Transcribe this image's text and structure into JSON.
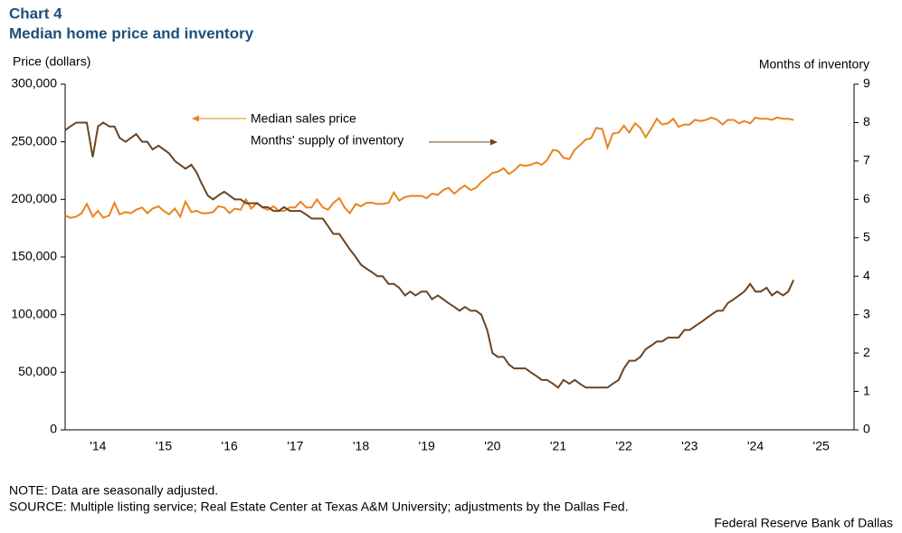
{
  "chart_data": {
    "type": "line",
    "title": "Chart 4",
    "subtitle": "Median home price and inventory",
    "y_label": "Price (dollars)",
    "y2_label": "Months  of inventory",
    "note": "NOTE: Data are seasonally adjusted.",
    "source": "SOURCE: Multiple listing service; Real Estate Center at Texas A&M University; adjustments by the Dallas Fed.",
    "credit": "Federal Reserve Bank of Dallas",
    "xlim": [
      2014,
      2026
    ],
    "xticks": [
      {
        "value": 2014.5,
        "label": "'14"
      },
      {
        "value": 2015.5,
        "label": "'15"
      },
      {
        "value": 2016.5,
        "label": "'16"
      },
      {
        "value": 2017.5,
        "label": "'17"
      },
      {
        "value": 2018.5,
        "label": "'18"
      },
      {
        "value": 2019.5,
        "label": "'19"
      },
      {
        "value": 2020.5,
        "label": "'20"
      },
      {
        "value": 2021.5,
        "label": "'21"
      },
      {
        "value": 2022.5,
        "label": "'22"
      },
      {
        "value": 2023.5,
        "label": "'23"
      },
      {
        "value": 2024.5,
        "label": "'24"
      },
      {
        "value": 2025.5,
        "label": "'25"
      }
    ],
    "ylim": [
      0,
      300000
    ],
    "yticks": [
      0,
      {
        "value": 50000,
        "label": "50,000"
      },
      {
        "value": 100000,
        "label": "100,000"
      },
      {
        "value": 150000,
        "label": "150,000"
      },
      {
        "value": 200000,
        "label": "200,000"
      },
      {
        "value": 250000,
        "label": "250,000"
      },
      {
        "value": 300000,
        "label": "300,000"
      }
    ],
    "y2lim": [
      0,
      9
    ],
    "y2ticks": [
      0,
      1,
      2,
      3,
      4,
      5,
      6,
      7,
      8,
      9
    ],
    "x": [
      2014,
      2014.08,
      2014.17,
      2014.25,
      2014.33,
      2014.42,
      2014.5,
      2014.58,
      2014.67,
      2014.75,
      2014.83,
      2014.92,
      2015,
      2015.08,
      2015.17,
      2015.25,
      2015.33,
      2015.42,
      2015.5,
      2015.58,
      2015.67,
      2015.75,
      2015.83,
      2015.92,
      2016,
      2016.08,
      2016.17,
      2016.25,
      2016.33,
      2016.42,
      2016.5,
      2016.58,
      2016.67,
      2016.75,
      2016.83,
      2016.92,
      2017,
      2017.08,
      2017.17,
      2017.25,
      2017.33,
      2017.42,
      2017.5,
      2017.58,
      2017.67,
      2017.75,
      2017.83,
      2017.92,
      2018,
      2018.08,
      2018.17,
      2018.25,
      2018.33,
      2018.42,
      2018.5,
      2018.58,
      2018.67,
      2018.75,
      2018.83,
      2018.92,
      2019,
      2019.08,
      2019.17,
      2019.25,
      2019.33,
      2019.42,
      2019.5,
      2019.58,
      2019.67,
      2019.75,
      2019.83,
      2019.92,
      2020,
      2020.08,
      2020.17,
      2020.25,
      2020.33,
      2020.42,
      2020.5,
      2020.58,
      2020.67,
      2020.75,
      2020.83,
      2020.92,
      2021,
      2021.08,
      2021.17,
      2021.25,
      2021.33,
      2021.42,
      2021.5,
      2021.58,
      2021.67,
      2021.75,
      2021.83,
      2021.92,
      2022,
      2022.08,
      2022.17,
      2022.25,
      2022.33,
      2022.42,
      2022.5,
      2022.58,
      2022.67,
      2022.75,
      2022.83,
      2022.92,
      2023,
      2023.08,
      2023.17,
      2023.25,
      2023.33,
      2023.42,
      2023.5,
      2023.58,
      2023.67,
      2023.75,
      2023.83,
      2023.92,
      2024,
      2024.08,
      2024.17,
      2024.25,
      2024.33,
      2024.42,
      2024.5,
      2024.58,
      2024.67,
      2024.75,
      2024.83,
      2024.92,
      2025,
      2025.08
    ],
    "series": [
      {
        "name": "Median sales price",
        "color": "#e8841f",
        "axis": "y",
        "values": [
          186000,
          184000,
          185000,
          188000,
          196000,
          185000,
          190000,
          184000,
          186000,
          197000,
          187000,
          189000,
          188000,
          191000,
          193000,
          188000,
          192000,
          194000,
          190000,
          187000,
          192000,
          185000,
          198000,
          189000,
          190000,
          188000,
          188000,
          189000,
          194000,
          193000,
          188000,
          192000,
          191000,
          200000,
          192000,
          197000,
          193000,
          191000,
          194000,
          190000,
          190000,
          193000,
          193000,
          198000,
          193000,
          193000,
          200000,
          193000,
          191000,
          197000,
          201000,
          193000,
          188000,
          196000,
          194000,
          197000,
          197000,
          196000,
          196000,
          197000,
          206000,
          199000,
          202000,
          203000,
          203000,
          203000,
          201000,
          205000,
          204000,
          208000,
          210000,
          205000,
          209000,
          212000,
          208000,
          210000,
          215000,
          219000,
          223000,
          224000,
          227000,
          222000,
          225000,
          230000,
          229000,
          230000,
          232000,
          230000,
          234000,
          243000,
          242000,
          236000,
          235000,
          243000,
          247000,
          252000,
          253000,
          262000,
          261000,
          245000,
          257000,
          258000,
          264000,
          258000,
          266000,
          262000,
          254000,
          262000,
          270000,
          265000,
          266000,
          270000,
          263000,
          265000,
          265000,
          269000,
          268000,
          269000,
          271000,
          269000,
          265000,
          269000,
          269000,
          266000,
          268000,
          266000,
          271000,
          270000,
          270000,
          269000,
          271000,
          270000,
          270000,
          269000
        ]
      },
      {
        "name": "Months' supply of inventory",
        "color": "#6b4423",
        "axis": "y2",
        "values": [
          7.8,
          7.9,
          8.0,
          8.0,
          8.0,
          7.1,
          7.9,
          8.0,
          7.9,
          7.9,
          7.6,
          7.5,
          7.6,
          7.7,
          7.5,
          7.5,
          7.3,
          7.4,
          7.3,
          7.2,
          7.0,
          6.9,
          6.8,
          6.9,
          6.7,
          6.4,
          6.1,
          6.0,
          6.1,
          6.2,
          6.1,
          6.0,
          6.0,
          5.9,
          5.9,
          5.9,
          5.8,
          5.8,
          5.7,
          5.7,
          5.8,
          5.7,
          5.7,
          5.7,
          5.6,
          5.5,
          5.5,
          5.5,
          5.3,
          5.1,
          5.1,
          4.9,
          4.7,
          4.5,
          4.3,
          4.2,
          4.1,
          4.0,
          4.0,
          3.8,
          3.8,
          3.7,
          3.5,
          3.6,
          3.5,
          3.6,
          3.6,
          3.4,
          3.5,
          3.4,
          3.3,
          3.2,
          3.1,
          3.2,
          3.1,
          3.1,
          3.0,
          2.6,
          2.0,
          1.9,
          1.9,
          1.7,
          1.6,
          1.6,
          1.6,
          1.5,
          1.4,
          1.3,
          1.3,
          1.2,
          1.1,
          1.3,
          1.2,
          1.3,
          1.2,
          1.1,
          1.1,
          1.1,
          1.1,
          1.1,
          1.2,
          1.3,
          1.6,
          1.8,
          1.8,
          1.9,
          2.1,
          2.2,
          2.3,
          2.3,
          2.4,
          2.4,
          2.4,
          2.6,
          2.6,
          2.7,
          2.8,
          2.9,
          3.0,
          3.1,
          3.1,
          3.3,
          3.4,
          3.5,
          3.6,
          3.8,
          3.6,
          3.6,
          3.7,
          3.5,
          3.6,
          3.5,
          3.6,
          3.9
        ]
      }
    ]
  }
}
